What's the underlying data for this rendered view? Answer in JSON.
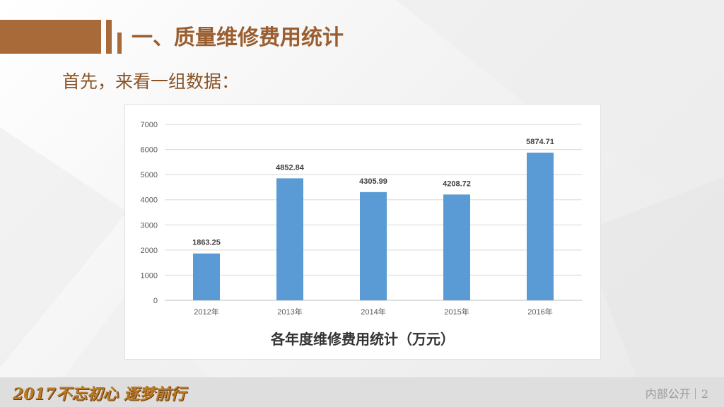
{
  "slide": {
    "title": "一、质量维修费用统计",
    "subtitle": "首先，来看一组数据：",
    "footer_slogan": "2017不忘初心  逐梦前行",
    "footer_label": "内部公开",
    "page_number": "2",
    "colors": {
      "accent": "#a96a3a",
      "title_text": "#9a5d2f",
      "bar": "#5b9bd5"
    }
  },
  "chart_data": {
    "type": "bar",
    "title": "各年度维修费用统计（万元）",
    "categories": [
      "2012年",
      "2013年",
      "2014年",
      "2015年",
      "2016年"
    ],
    "values": [
      1863.25,
      4852.84,
      4305.99,
      4208.72,
      5874.71
    ],
    "value_labels": [
      "1863.25",
      "4852.84",
      "4305.99",
      "4208.72",
      "5874.71"
    ],
    "yticks": [
      0,
      1000,
      2000,
      3000,
      4000,
      5000,
      6000,
      7000
    ],
    "ylim": [
      0,
      7000
    ],
    "grid": true,
    "legend": "none"
  }
}
